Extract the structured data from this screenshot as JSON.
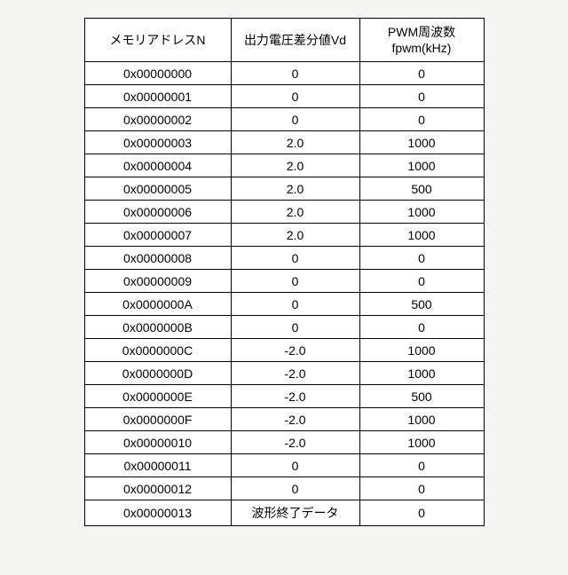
{
  "table": {
    "columns": [
      {
        "label": "メモリアドレスN",
        "class": "col-addr"
      },
      {
        "label": "出力電圧差分値Vd",
        "class": "col-vd"
      },
      {
        "label": "PWM周波数\nfpwm(kHz)",
        "class": "col-fpwm"
      }
    ],
    "rows": [
      [
        "0x00000000",
        "0",
        "0"
      ],
      [
        "0x00000001",
        "0",
        "0"
      ],
      [
        "0x00000002",
        "0",
        "0"
      ],
      [
        "0x00000003",
        "2.0",
        "1000"
      ],
      [
        "0x00000004",
        "2.0",
        "1000"
      ],
      [
        "0x00000005",
        "2.0",
        "500"
      ],
      [
        "0x00000006",
        "2.0",
        "1000"
      ],
      [
        "0x00000007",
        "2.0",
        "1000"
      ],
      [
        "0x00000008",
        "0",
        "0"
      ],
      [
        "0x00000009",
        "0",
        "0"
      ],
      [
        "0x0000000A",
        "0",
        "500"
      ],
      [
        "0x0000000B",
        "0",
        "0"
      ],
      [
        "0x0000000C",
        "-2.0",
        "1000"
      ],
      [
        "0x0000000D",
        "-2.0",
        "1000"
      ],
      [
        "0x0000000E",
        "-2.0",
        "500"
      ],
      [
        "0x0000000F",
        "-2.0",
        "1000"
      ],
      [
        "0x00000010",
        "-2.0",
        "1000"
      ],
      [
        "0x00000011",
        "0",
        "0"
      ],
      [
        "0x00000012",
        "0",
        "0"
      ],
      [
        "0x00000013",
        "波形終了データ",
        "0"
      ]
    ]
  }
}
